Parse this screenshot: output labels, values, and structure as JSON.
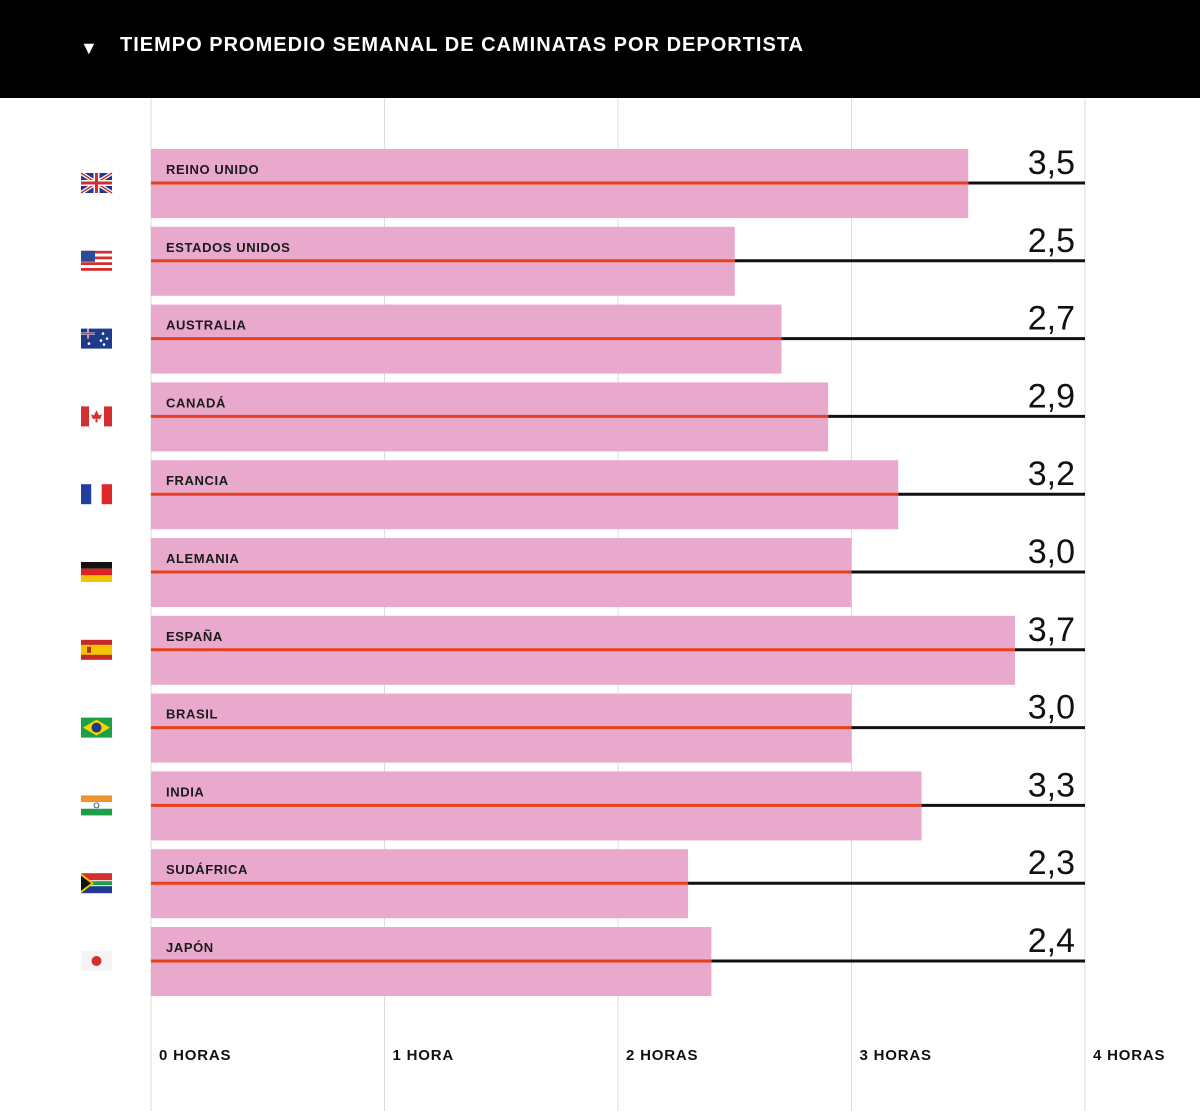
{
  "header": {
    "title": "TIEMPO PROMEDIO SEMANAL DE CAMINATAS POR DEPORTISTA",
    "arrow": "▼"
  },
  "colors": {
    "bar": "#e9a9cc",
    "bar_line": "#e8401c",
    "track_line": "#111111",
    "grid": "#dcdcdc",
    "header_bg": "#000000"
  },
  "chart_data": {
    "type": "bar",
    "orientation": "horizontal",
    "title": "TIEMPO PROMEDIO SEMANAL DE CAMINATAS POR DEPORTISTA",
    "categories": [
      "REINO UNIDO",
      "ESTADOS UNIDOS",
      "AUSTRALIA",
      "CANADÁ",
      "FRANCIA",
      "ALEMANIA",
      "ESPAÑA",
      "BRASIL",
      "INDIA",
      "SUDÁFRICA",
      "JAPÓN"
    ],
    "values": [
      3.5,
      2.5,
      2.7,
      2.9,
      3.2,
      3.0,
      3.7,
      3.0,
      3.3,
      2.3,
      2.4
    ],
    "value_labels": [
      "3,5",
      "2,5",
      "2,7",
      "2,9",
      "3,2",
      "3,0",
      "3,7",
      "3,0",
      "3,3",
      "2,3",
      "2,4"
    ],
    "flags": [
      "uk-flag-icon",
      "usa-flag-icon",
      "australia-flag-icon",
      "canada-flag-icon",
      "france-flag-icon",
      "germany-flag-icon",
      "spain-flag-icon",
      "brazil-flag-icon",
      "india-flag-icon",
      "south-africa-flag-icon",
      "japan-flag-icon"
    ],
    "xlim": [
      0,
      4
    ],
    "ticks": [
      0,
      1,
      2,
      3,
      4
    ],
    "tick_labels": [
      "0 HORAS",
      "1 HORA",
      "2 HORAS",
      "3 HORAS",
      "4 HORAS"
    ],
    "grid": true
  }
}
